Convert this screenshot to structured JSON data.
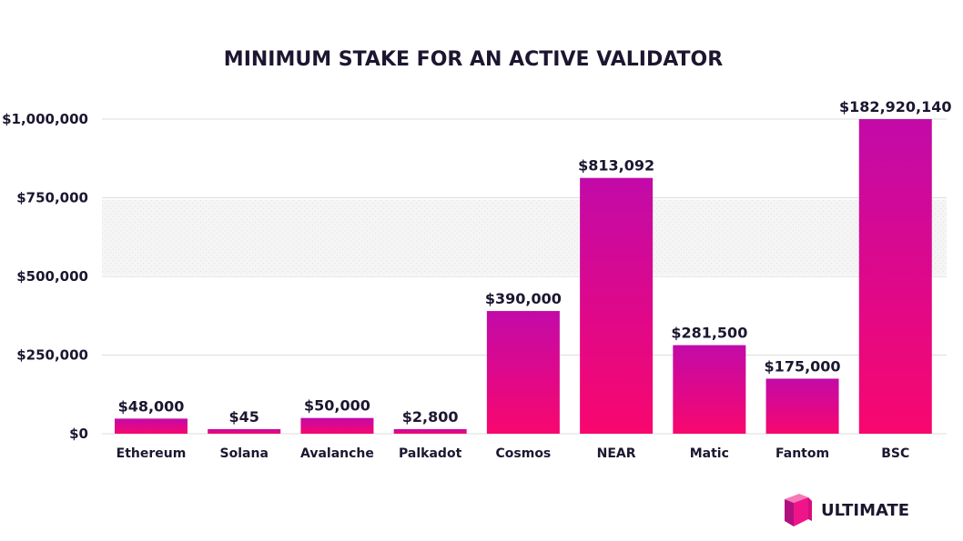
{
  "chart_data": {
    "type": "bar",
    "title": "MINIMUM STAKE FOR AN ACTIVE VALIDATOR",
    "xlabel": "",
    "ylabel": "",
    "ylim": [
      0,
      1000000
    ],
    "y_ticks": [
      0,
      250000,
      500000,
      750000,
      1000000
    ],
    "y_tick_labels": [
      "$0",
      "$250,000",
      "$500,000",
      "$750,000",
      "$1,000,000"
    ],
    "grid": true,
    "clipped_at_max": true,
    "categories": [
      "Ethereum",
      "Solana",
      "Avalanche",
      "Palkadot",
      "Cosmos",
      "NEAR",
      "Matic",
      "Fantom",
      "BSC"
    ],
    "values": [
      48000,
      45,
      50000,
      2800,
      390000,
      813092,
      281500,
      175000,
      182920140
    ],
    "data_labels": [
      "$48,000",
      "$45",
      "$50,000",
      "$2,800",
      "$390,000",
      "$813,092",
      "$281,500",
      "$175,000",
      "$182,920,140"
    ],
    "bar_color_top": "#c20aa8",
    "bar_color_bottom": "#f8076e"
  },
  "brand": {
    "name": "ULTIMATE",
    "logo_color_dark": "#b0117e",
    "logo_color_light": "#f0148a"
  },
  "colors": {
    "text": "#1d1630",
    "grid": "#dcdcdc",
    "band": "#f2f2f2"
  }
}
